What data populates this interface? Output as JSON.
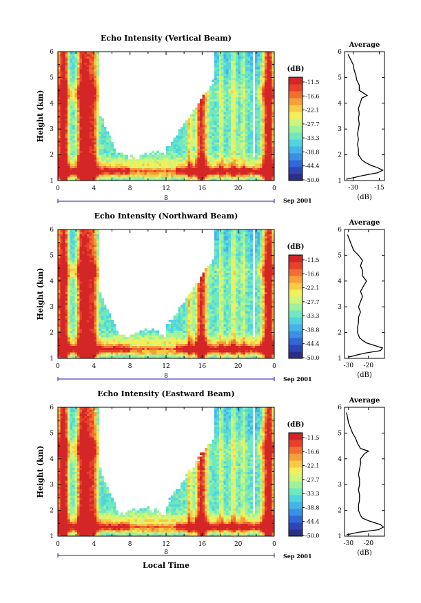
{
  "figure": {
    "date_label": "Sep 2001",
    "day_label": "8",
    "x_title": "Local Time",
    "y_title": "Height (km)",
    "x_ticks": [
      "0",
      "4",
      "8",
      "12",
      "16",
      "20",
      "0"
    ],
    "y_ticks": [
      "1",
      "2",
      "3",
      "4",
      "5",
      "6"
    ],
    "colorbar_unit": "(dB)",
    "colorbar_ticks": [
      "-11.5",
      "-16.6",
      "-22.1",
      "-27.7",
      "-33.3",
      "-38.8",
      "-44.4",
      "-50.0"
    ],
    "avg_title": "Average",
    "avg_xlabel": "(dB)"
  },
  "colors": {
    "colormap": [
      "#2a2f88",
      "#2e45b8",
      "#3068d9",
      "#3a8fe6",
      "#44b4ea",
      "#4fd4e0",
      "#6ee8c0",
      "#9ef29a",
      "#cff57b",
      "#f2ef5c",
      "#f8cb44",
      "#f79f38",
      "#f26e30",
      "#e8402b",
      "#d42626"
    ],
    "frame": "#000000",
    "time_axis": "#1a1aaa"
  },
  "chart_data": [
    {
      "type": "heatmap",
      "title": "Echo Intensity (Vertical Beam)",
      "xlim": [
        0,
        24
      ],
      "ylim": [
        1,
        6
      ],
      "clim": [
        -50.0,
        -11.5
      ],
      "avg_profile": {
        "xticks": [
          "-30",
          "-15"
        ],
        "xlim": [
          -35,
          -12
        ],
        "height": [
          1.05,
          1.2,
          1.3,
          1.4,
          1.5,
          1.6,
          1.7,
          1.8,
          1.9,
          2.0,
          2.2,
          2.4,
          2.6,
          2.8,
          3.0,
          3.2,
          3.4,
          3.6,
          3.8,
          4.0,
          4.2,
          4.3,
          4.5,
          4.7,
          4.9,
          5.1,
          5.3,
          5.5,
          5.7,
          5.9
        ],
        "db": [
          -34,
          -24,
          -16,
          -13,
          -16,
          -20,
          -23,
          -25,
          -26,
          -27,
          -27,
          -27.5,
          -27,
          -27.5,
          -27,
          -26.5,
          -27,
          -26.5,
          -27,
          -26,
          -25,
          -22,
          -26.5,
          -26.5,
          -28,
          -28.5,
          -29.5,
          -30,
          -31.5,
          -33
        ]
      }
    },
    {
      "type": "heatmap",
      "title": "Echo Intensity (Northward Beam)",
      "xlim": [
        0,
        24
      ],
      "ylim": [
        1,
        6
      ],
      "clim": [
        -50.0,
        -11.5
      ],
      "avg_profile": {
        "xticks": [
          "-30",
          "-20"
        ],
        "xlim": [
          -32,
          -12
        ],
        "height": [
          1.05,
          1.2,
          1.3,
          1.4,
          1.5,
          1.6,
          1.7,
          1.8,
          1.9,
          2.0,
          2.2,
          2.4,
          2.6,
          2.8,
          3.0,
          3.2,
          3.4,
          3.6,
          3.8,
          4.0,
          4.2,
          4.4,
          4.6,
          4.8,
          5.0,
          5.2,
          5.4,
          5.6,
          5.8
        ],
        "db": [
          -30,
          -22,
          -14,
          -13,
          -17,
          -21,
          -23,
          -24.5,
          -25,
          -25.5,
          -25.5,
          -25,
          -25,
          -24,
          -25,
          -24,
          -23,
          -24,
          -22.5,
          -21,
          -23,
          -23,
          -24,
          -23,
          -25,
          -27.5,
          -28.5,
          -29.5,
          -30.5
        ]
      }
    },
    {
      "type": "heatmap",
      "title": "Echo Intensity (Eastward Beam)",
      "xlim": [
        0,
        24
      ],
      "ylim": [
        1,
        6
      ],
      "clim": [
        -50.0,
        -11.5
      ],
      "avg_profile": {
        "xticks": [
          "-30",
          "-20"
        ],
        "xlim": [
          -32,
          -12
        ],
        "height": [
          1.05,
          1.15,
          1.25,
          1.35,
          1.45,
          1.6,
          1.7,
          1.8,
          1.9,
          2.0,
          2.2,
          2.4,
          2.6,
          2.8,
          3.0,
          3.2,
          3.4,
          3.6,
          3.8,
          4.0,
          4.2,
          4.3,
          4.4,
          4.6,
          4.8,
          5.0,
          5.2,
          5.4,
          5.6,
          5.8
        ],
        "db": [
          -31,
          -25,
          -15,
          -12.5,
          -14,
          -20,
          -23,
          -24,
          -24.5,
          -25,
          -25,
          -24.5,
          -24.5,
          -25,
          -24.5,
          -24.5,
          -25,
          -24.5,
          -24,
          -24,
          -22,
          -20,
          -24,
          -25.5,
          -26.5,
          -28,
          -29,
          -30,
          -30.5,
          -31
        ]
      }
    }
  ]
}
